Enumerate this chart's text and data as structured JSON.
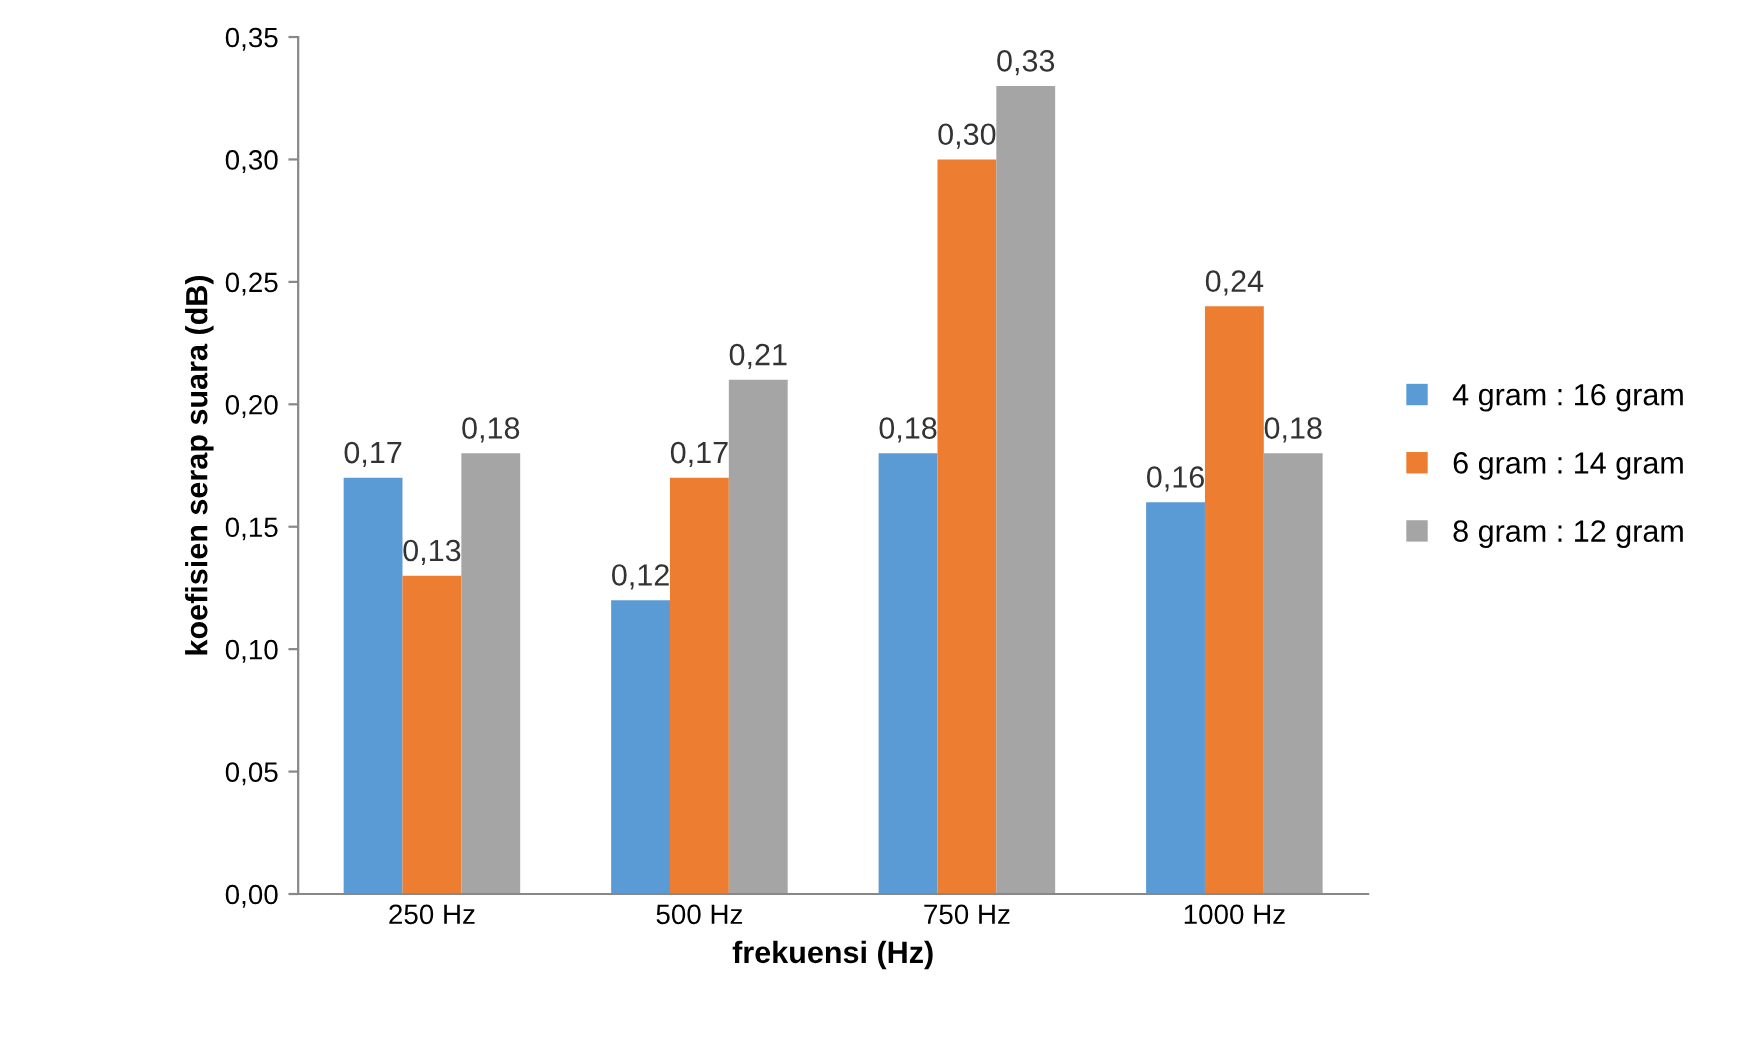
{
  "chart_data": {
    "type": "bar",
    "xlabel": "frekuensi (Hz)",
    "ylabel": "koefisien serap suara (dB)",
    "categories": [
      "250 Hz",
      "500 Hz",
      "750 Hz",
      "1000 Hz"
    ],
    "series": [
      {
        "name": "4 gram : 16 gram",
        "color": "#5b9bd5",
        "values": [
          0.17,
          0.12,
          0.18,
          0.16
        ],
        "value_labels": [
          "0,17",
          "0,12",
          "0,18",
          "0,16"
        ]
      },
      {
        "name": "6 gram : 14 gram",
        "color": "#ed7d31",
        "values": [
          0.13,
          0.17,
          0.3,
          0.24
        ],
        "value_labels": [
          "0,13",
          "0,17",
          "0,30",
          "0,24"
        ]
      },
      {
        "name": "8 gram : 12 gram",
        "color": "#a5a5a5",
        "values": [
          0.18,
          0.21,
          0.33,
          0.18
        ],
        "value_labels": [
          "0,18",
          "0,21",
          "0,33",
          "0,18"
        ]
      }
    ],
    "ylim": [
      0,
      0.35
    ],
    "yticks": [
      {
        "value": 0,
        "label": "0,00"
      },
      {
        "value": 0.05,
        "label": "0,05"
      },
      {
        "value": 0.1,
        "label": "0,10"
      },
      {
        "value": 0.15,
        "label": "0,15"
      },
      {
        "value": 0.2,
        "label": "0,20"
      },
      {
        "value": 0.25,
        "label": "0,25"
      },
      {
        "value": 0.3,
        "label": "0,30"
      },
      {
        "value": 0.35,
        "label": "0,35"
      }
    ],
    "grid": false,
    "legend": "right"
  }
}
